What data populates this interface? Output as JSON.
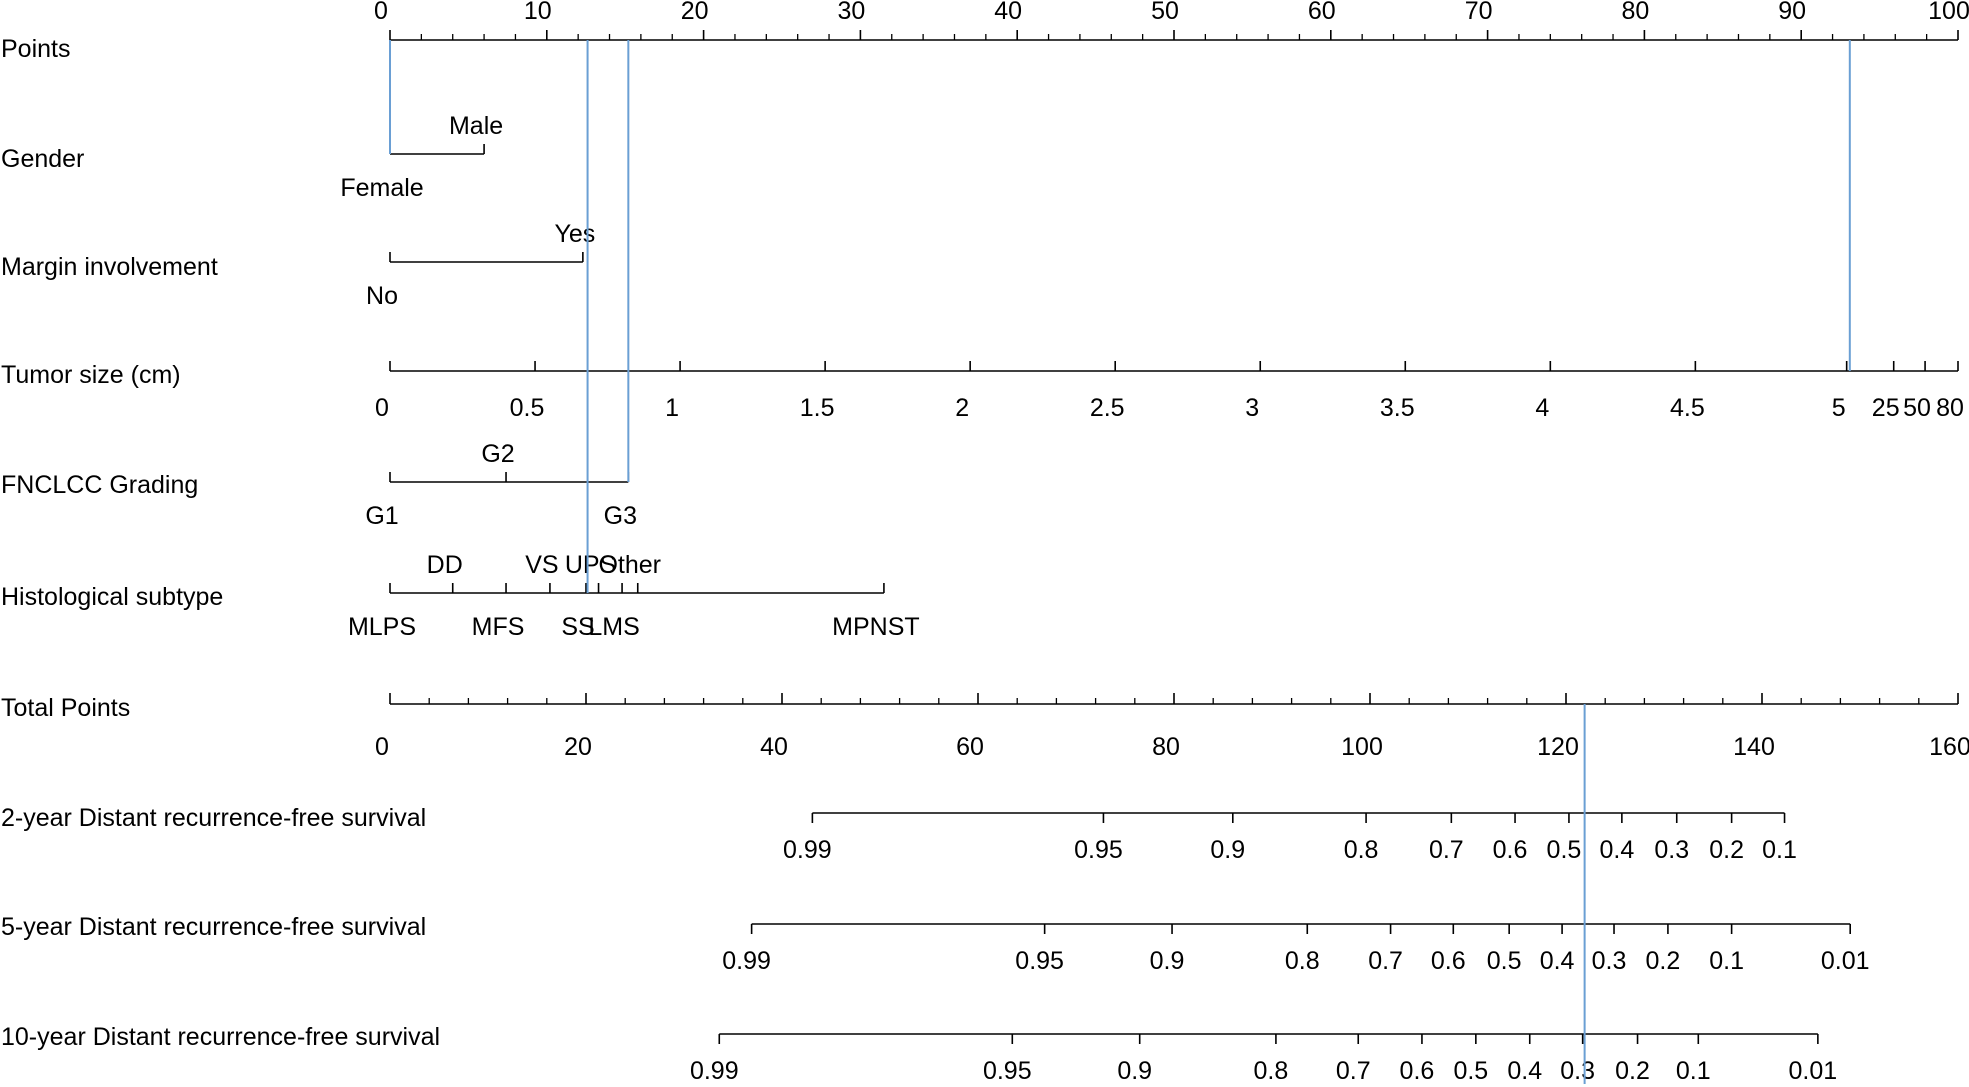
{
  "chart_data": {
    "type": "nomogram",
    "guide_color": "#6a9fd4",
    "rows": [
      {
        "key": "points",
        "label": "Points",
        "kind": "points-axis",
        "range": [
          0,
          100
        ],
        "major_step": 10,
        "minor_step": 2,
        "tick_labels": [
          "0",
          "10",
          "20",
          "30",
          "40",
          "50",
          "60",
          "70",
          "80",
          "90",
          "100"
        ]
      },
      {
        "key": "gender",
        "label": "Gender",
        "kind": "categorical",
        "levels": [
          {
            "label": "Female",
            "points": 0,
            "side": "below"
          },
          {
            "label": "Male",
            "points": 6,
            "side": "above"
          }
        ]
      },
      {
        "key": "margin",
        "label": "Margin involvement",
        "kind": "categorical",
        "levels": [
          {
            "label": "No",
            "points": 0,
            "side": "below"
          },
          {
            "label": "Yes",
            "points": 12.3,
            "side": "above"
          }
        ]
      },
      {
        "key": "tumor_size",
        "label": "Tumor size (cm)",
        "kind": "continuous",
        "ticks": [
          {
            "label": "0",
            "points": 0
          },
          {
            "label": "0.5",
            "points": 9.25
          },
          {
            "label": "1",
            "points": 18.5
          },
          {
            "label": "1.5",
            "points": 27.75
          },
          {
            "label": "2",
            "points": 37
          },
          {
            "label": "2.5",
            "points": 46.25
          },
          {
            "label": "3",
            "points": 55.5
          },
          {
            "label": "3.5",
            "points": 64.75
          },
          {
            "label": "4",
            "points": 74
          },
          {
            "label": "4.5",
            "points": 83.25
          },
          {
            "label": "5",
            "points": 92.9
          },
          {
            "label": "25",
            "points": 95.9
          },
          {
            "label": "50",
            "points": 97.9
          },
          {
            "label": "80",
            "points": 100
          }
        ]
      },
      {
        "key": "fnclcc",
        "label": "FNCLCC Grading",
        "kind": "categorical",
        "levels": [
          {
            "label": "G1",
            "points": 0,
            "side": "below"
          },
          {
            "label": "G2",
            "points": 7.4,
            "side": "above"
          },
          {
            "label": "G3",
            "points": 15.2,
            "side": "below"
          }
        ]
      },
      {
        "key": "histology",
        "label": "Histological subtype",
        "kind": "categorical",
        "levels": [
          {
            "label": "MLPS",
            "points": 0,
            "side": "below"
          },
          {
            "label": "DD",
            "points": 4,
            "side": "above"
          },
          {
            "label": "MFS",
            "points": 7.4,
            "side": "below"
          },
          {
            "label": "VS",
            "points": 10.2,
            "side": "above"
          },
          {
            "label": "SS",
            "points": 12.5,
            "side": "below"
          },
          {
            "label": "UPS",
            "points": 13.3,
            "side": "above"
          },
          {
            "label": "LMS",
            "points": 14.8,
            "side": "below"
          },
          {
            "label": "Other",
            "points": 15.8,
            "side": "above"
          },
          {
            "label": "MPNST",
            "points": 31.5,
            "side": "below"
          }
        ]
      },
      {
        "key": "total",
        "label": "Total Points",
        "kind": "total-axis",
        "range": [
          0,
          160
        ],
        "major_step": 20,
        "minor_step": 4,
        "tick_labels": [
          "0",
          "20",
          "40",
          "60",
          "80",
          "100",
          "120",
          "140",
          "160"
        ]
      },
      {
        "key": "surv2",
        "label": "2-year Distant recurrence-free survival",
        "kind": "survival",
        "ticks": [
          {
            "label": "0.99",
            "total": 43.1
          },
          {
            "label": "0.95",
            "total": 72.8
          },
          {
            "label": "0.9",
            "total": 86
          },
          {
            "label": "0.8",
            "total": 99.6
          },
          {
            "label": "0.7",
            "total": 108.3
          },
          {
            "label": "0.6",
            "total": 114.8
          },
          {
            "label": "0.5",
            "total": 120.3
          },
          {
            "label": "0.4",
            "total": 125.7
          },
          {
            "label": "0.3",
            "total": 131.3
          },
          {
            "label": "0.2",
            "total": 136.9
          },
          {
            "label": "0.1",
            "total": 142.3
          }
        ]
      },
      {
        "key": "surv5",
        "label": "5-year Distant recurrence-free survival",
        "kind": "survival",
        "ticks": [
          {
            "label": "0.99",
            "total": 36.9
          },
          {
            "label": "0.95",
            "total": 66.8
          },
          {
            "label": "0.9",
            "total": 79.8
          },
          {
            "label": "0.8",
            "total": 93.6
          },
          {
            "label": "0.7",
            "total": 102.1
          },
          {
            "label": "0.6",
            "total": 108.5
          },
          {
            "label": "0.5",
            "total": 114.2
          },
          {
            "label": "0.4",
            "total": 119.6
          },
          {
            "label": "0.3",
            "total": 124.9
          },
          {
            "label": "0.2",
            "total": 130.4
          },
          {
            "label": "0.1",
            "total": 136.9
          },
          {
            "label": "0.01",
            "total": 149
          }
        ]
      },
      {
        "key": "surv10",
        "label": "10-year Distant recurrence-free survival",
        "kind": "survival",
        "ticks": [
          {
            "label": "0.99",
            "total": 33.6
          },
          {
            "label": "0.95",
            "total": 63.5
          },
          {
            "label": "0.9",
            "total": 76.5
          },
          {
            "label": "0.8",
            "total": 90.4
          },
          {
            "label": "0.7",
            "total": 98.8
          },
          {
            "label": "0.6",
            "total": 105.3
          },
          {
            "label": "0.5",
            "total": 110.8
          },
          {
            "label": "0.4",
            "total": 116.3
          },
          {
            "label": "0.3",
            "total": 121.7
          },
          {
            "label": "0.2",
            "total": 127.3
          },
          {
            "label": "0.1",
            "total": 133.5
          },
          {
            "label": "0.01",
            "total": 145.7
          }
        ]
      }
    ],
    "guide_lines": [
      {
        "scale": "points",
        "value": 0,
        "from": "points",
        "to": "gender"
      },
      {
        "scale": "points",
        "value": 12.6,
        "from": "points",
        "to": "histology"
      },
      {
        "scale": "points",
        "value": 15.2,
        "from": "points",
        "to": "fnclcc"
      },
      {
        "scale": "points",
        "value": 93.1,
        "from": "points",
        "to": "tumor_size"
      },
      {
        "scale": "total",
        "value": 121.9,
        "from": "total",
        "to": "surv10"
      }
    ]
  }
}
